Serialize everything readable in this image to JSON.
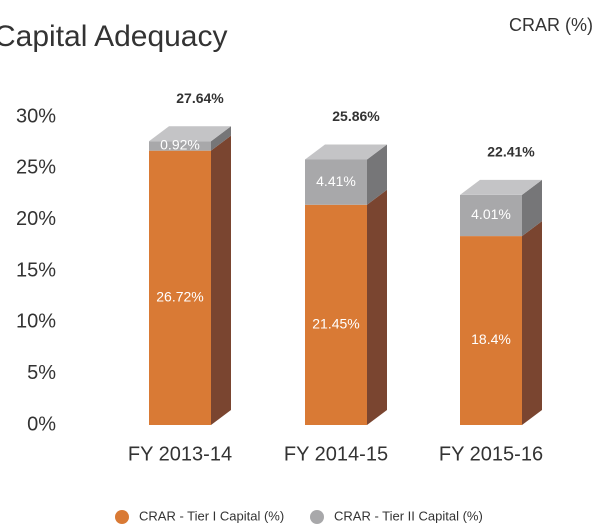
{
  "chart_data": {
    "type": "stacked-bar-3d",
    "title": "Capital Adequacy",
    "subtitle": "CRAR (%)",
    "categories": [
      "FY 2013-14",
      "FY 2014-15",
      "FY 2015-16"
    ],
    "series": [
      {
        "name": "CRAR - Tier I Capital (%)",
        "color": "#d97a35",
        "side_color": "#7a4530",
        "values": [
          26.72,
          21.45,
          18.4
        ],
        "value_labels": [
          "26.72%",
          "21.45%",
          "18.4%"
        ]
      },
      {
        "name": "CRAR - Tier II Capital (%)",
        "color": "#a8a8aa",
        "side_color": "#767678",
        "top_color": "#c4c4c6",
        "values": [
          0.92,
          4.41,
          4.01
        ],
        "value_labels": [
          "0.92%",
          "4.41%",
          "4.01%"
        ]
      }
    ],
    "totals": [
      27.64,
      25.86,
      22.41
    ],
    "total_labels": [
      "27.64%",
      "25.86%",
      "22.41%"
    ],
    "ylim": [
      0,
      30
    ],
    "yticks": [
      {
        "value": 0,
        "label": "0%"
      },
      {
        "value": 5,
        "label": "5%"
      },
      {
        "value": 10,
        "label": "10%"
      },
      {
        "value": 15,
        "label": "15%"
      },
      {
        "value": 20,
        "label": "20%"
      },
      {
        "value": 25,
        "label": "25%"
      },
      {
        "value": 30,
        "label": "30%"
      }
    ],
    "legend": "bottom"
  }
}
